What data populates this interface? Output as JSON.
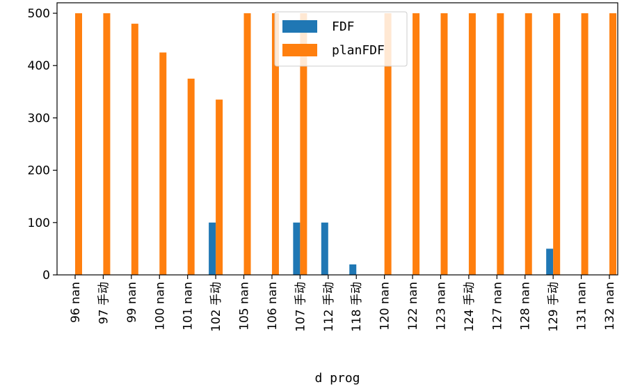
{
  "chart_data": {
    "type": "bar",
    "xlabel": "d prog",
    "ylabel": "",
    "title": "",
    "ylim": [
      0,
      520
    ],
    "yticks": [
      0,
      100,
      200,
      300,
      400,
      500
    ],
    "grid": false,
    "legend_position": "top-center",
    "categories": [
      "96 nan",
      "97 手动",
      "99 nan",
      "100 nan",
      "101 nan",
      "102 手动",
      "105 nan",
      "106 nan",
      "107 手动",
      "112 手动",
      "118 手动",
      "120 nan",
      "122 nan",
      "123 nan",
      "124 手动",
      "127 nan",
      "128 nan",
      "129 手动",
      "131 nan",
      "132 nan"
    ],
    "series": [
      {
        "name": "FDF",
        "color": "#1f77b4",
        "values": [
          0,
          0,
          0,
          0,
          0,
          100,
          0,
          0,
          100,
          100,
          20,
          0,
          0,
          0,
          0,
          0,
          0,
          50,
          0,
          0
        ]
      },
      {
        "name": "planFDF",
        "color": "#ff7f0e",
        "values": [
          500,
          500,
          480,
          425,
          375,
          335,
          500,
          500,
          500,
          0,
          0,
          500,
          500,
          500,
          500,
          500,
          500,
          500,
          500,
          500
        ]
      }
    ]
  }
}
